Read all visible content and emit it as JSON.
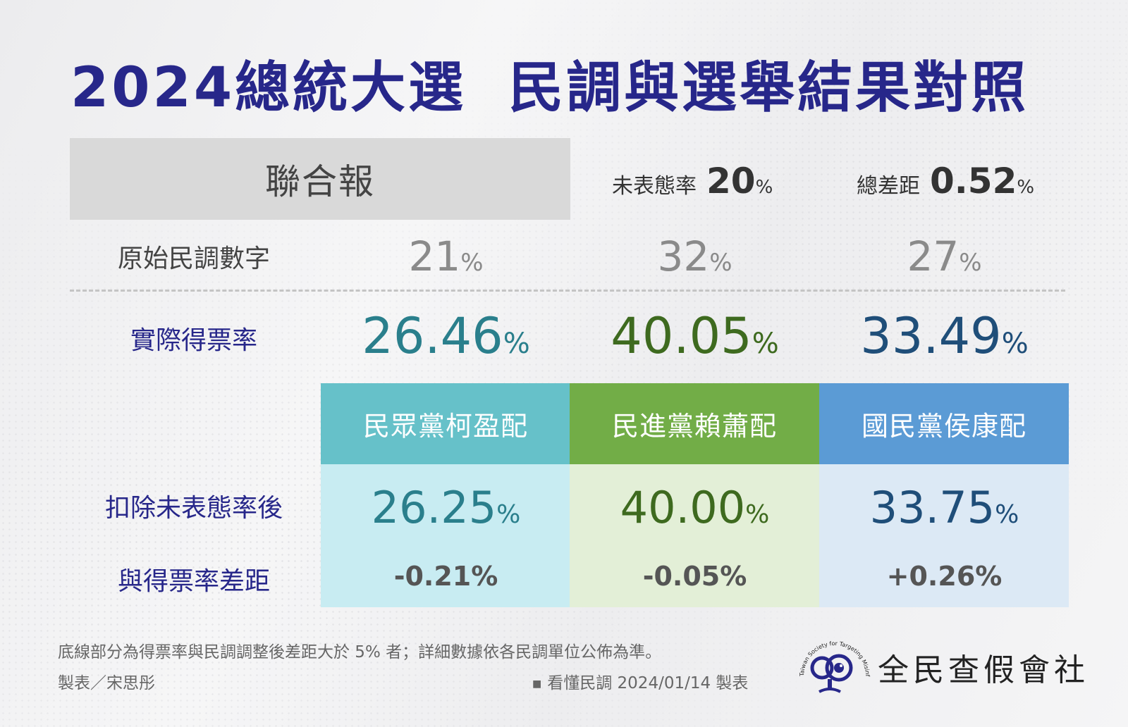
{
  "title": {
    "part1": "2024總統大選",
    "part2": "民調與選舉結果對照"
  },
  "source": "聯合報",
  "undecided": {
    "label": "未表態率",
    "value": "20",
    "unit": "%"
  },
  "total_gap": {
    "label": "總差距",
    "value": "0.52",
    "unit": "%"
  },
  "rows": {
    "raw_label": "原始民調數字",
    "actual_label": "實際得票率",
    "adjusted_label": "扣除未表態率後",
    "diff_label": "與得票率差距"
  },
  "unit": "%",
  "parties": [
    {
      "name": "民眾黨柯盈配",
      "raw": "21",
      "actual": "26.46",
      "adjusted": "26.25",
      "diff": "-0.21%",
      "head_color": "#66c1c9",
      "body_color": "#c8ecf2",
      "text_color": "#2a7f8c"
    },
    {
      "name": "民進黨賴蕭配",
      "raw": "32",
      "actual": "40.05",
      "adjusted": "40.00",
      "diff": "-0.05%",
      "head_color": "#72ad47",
      "body_color": "#e3efd7",
      "text_color": "#3e6a1f"
    },
    {
      "name": "國民黨侯康配",
      "raw": "27",
      "actual": "33.49",
      "adjusted": "33.75",
      "diff": "+0.26%",
      "head_color": "#5b9bd5",
      "body_color": "#dce9f5",
      "text_color": "#1f4e79"
    }
  ],
  "label_color": "#27278a",
  "footer": {
    "note": "底線部分為得票率與民調調整後差距大於 5% 者；詳細數據依各民調單位公佈為準。",
    "credit": "製表／宋思彤",
    "series": "看懂民調 2024/01/14 製表"
  },
  "logo": {
    "name": "全民查假會社",
    "tagline": "Taiwan Society for Targeting Misinformation",
    "icon": "magnifier-eye-logo"
  }
}
